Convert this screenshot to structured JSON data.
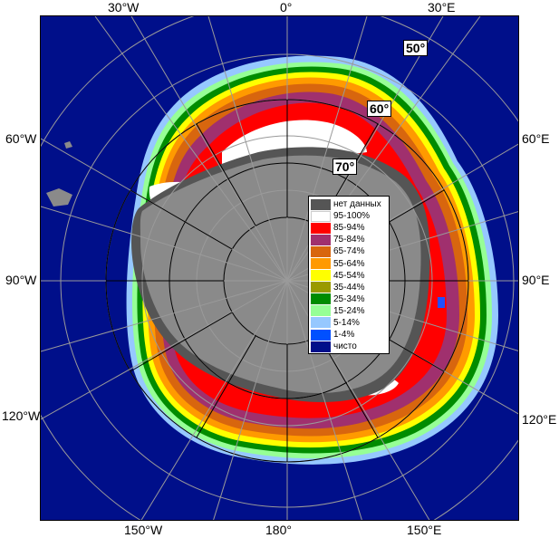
{
  "map": {
    "longitude_labels": {
      "top": [
        "30°W",
        "0°",
        "30°E"
      ],
      "left": [
        "60°W",
        "90°W",
        "120°W"
      ],
      "right": [
        "60°E",
        "90°E",
        "120°E"
      ],
      "bottom": [
        "150°W",
        "180°",
        "150°E"
      ]
    },
    "latitude_labels": [
      "50°",
      "60°",
      "70°"
    ],
    "colors": {
      "ocean": "#000f8a",
      "land": "#8a8a8a",
      "no_data": "#555555",
      "grid": "#9a9a9a",
      "grid_inner": "#000000"
    }
  },
  "legend": {
    "items": [
      {
        "label": "нет данных",
        "color": "#555555"
      },
      {
        "label": "95-100%",
        "color": "#ffffff"
      },
      {
        "label": "85-94%",
        "color": "#ff0000"
      },
      {
        "label": "75-84%",
        "color": "#a0306e"
      },
      {
        "label": "65-74%",
        "color": "#d8660e"
      },
      {
        "label": "55-64%",
        "color": "#ff9a00"
      },
      {
        "label": "45-54%",
        "color": "#ffff00"
      },
      {
        "label": "35-44%",
        "color": "#9a9a00"
      },
      {
        "label": "25-34%",
        "color": "#008c00"
      },
      {
        "label": "15-24%",
        "color": "#96ff96"
      },
      {
        "label": "5-14%",
        "color": "#96c8ff"
      },
      {
        "label": "1-4%",
        "color": "#0050ff"
      },
      {
        "label": "чисто",
        "color": "#000f8a"
      }
    ]
  }
}
